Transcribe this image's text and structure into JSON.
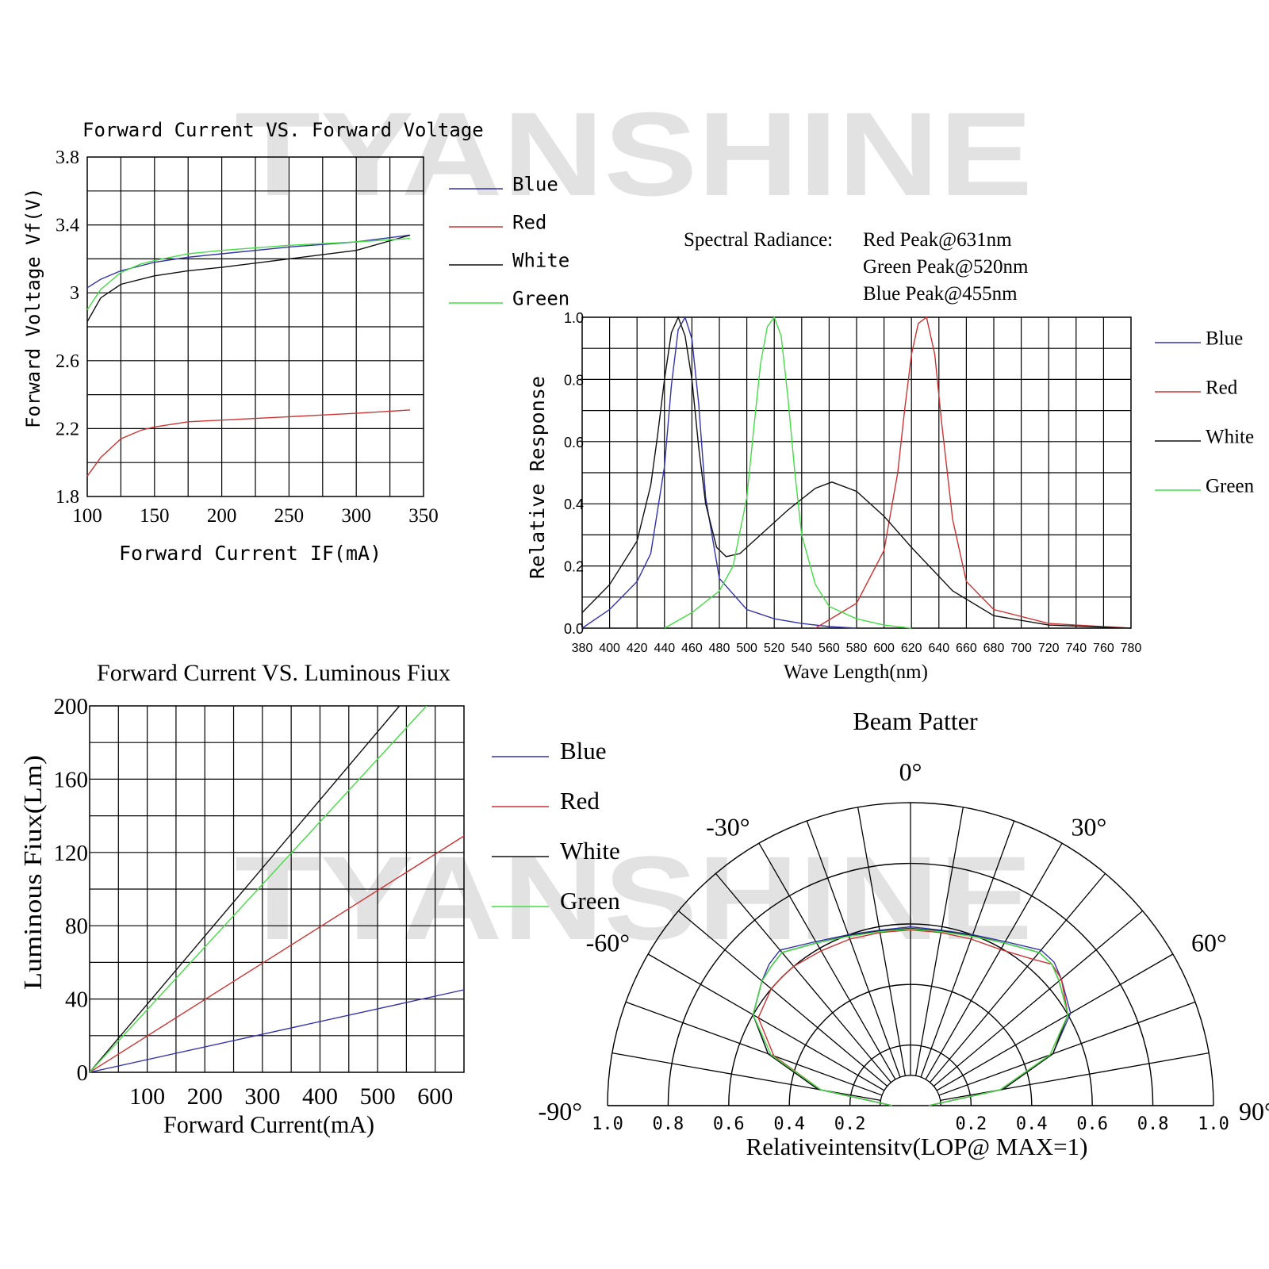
{
  "watermark": "TYANSHINE",
  "colors": {
    "Blue": "#3333aa",
    "Red": "#cc3333",
    "White": "#111111",
    "Green": "#44dd44"
  },
  "legend_labels": [
    "Blue",
    "Red",
    "White",
    "Green"
  ],
  "chart_data": [
    {
      "id": "vf",
      "type": "line",
      "title": "Forward Current VS. Forward Voltage",
      "xlabel": "Forward Current IF(mA)",
      "ylabel": "Forward Voltage Vf(V)",
      "xlim": [
        100,
        350
      ],
      "ylim": [
        1.8,
        3.8
      ],
      "xticks": [
        100,
        150,
        200,
        250,
        300,
        350
      ],
      "yticks": [
        1.8,
        2.2,
        2.6,
        3.0,
        3.4,
        3.8
      ],
      "legend": "right",
      "series": [
        {
          "name": "Blue",
          "x": [
            100,
            110,
            125,
            140,
            150,
            175,
            200,
            250,
            300,
            340
          ],
          "y": [
            3.03,
            3.08,
            3.13,
            3.16,
            3.18,
            3.21,
            3.23,
            3.27,
            3.3,
            3.34
          ]
        },
        {
          "name": "Red",
          "x": [
            100,
            110,
            125,
            140,
            150,
            175,
            200,
            250,
            300,
            340
          ],
          "y": [
            1.92,
            2.03,
            2.14,
            2.19,
            2.21,
            2.24,
            2.25,
            2.27,
            2.29,
            2.31
          ]
        },
        {
          "name": "White",
          "x": [
            100,
            110,
            125,
            140,
            150,
            175,
            200,
            250,
            300,
            340
          ],
          "y": [
            2.83,
            2.97,
            3.05,
            3.08,
            3.1,
            3.13,
            3.15,
            3.2,
            3.25,
            3.34
          ]
        },
        {
          "name": "Green",
          "x": [
            100,
            110,
            125,
            140,
            150,
            175,
            200,
            250,
            300,
            340
          ],
          "y": [
            2.9,
            3.02,
            3.12,
            3.17,
            3.19,
            3.23,
            3.25,
            3.28,
            3.3,
            3.32
          ]
        }
      ]
    },
    {
      "id": "spectral",
      "type": "line",
      "title": "Spectral Radiance:",
      "peaks": [
        "Red Peak@631nm",
        "Green Peak@520nm",
        "Blue Peak@455nm"
      ],
      "xlabel": "Wave Length(nm)",
      "ylabel": "Relative Response",
      "xlim": [
        380,
        780
      ],
      "ylim": [
        0,
        1.0
      ],
      "xticks": [
        380,
        400,
        420,
        440,
        460,
        480,
        500,
        520,
        540,
        560,
        580,
        600,
        620,
        640,
        660,
        680,
        700,
        720,
        740,
        760,
        780
      ],
      "yticks": [
        "0.0",
        "0.2",
        "0.4",
        "0.6",
        "0.8",
        "1.0"
      ],
      "legend": "right",
      "series": [
        {
          "name": "Blue",
          "x": [
            380,
            400,
            420,
            430,
            440,
            445,
            450,
            455,
            460,
            465,
            470,
            480,
            500,
            520,
            540,
            560,
            580
          ],
          "y": [
            0.0,
            0.06,
            0.15,
            0.24,
            0.52,
            0.78,
            0.96,
            1.0,
            0.93,
            0.72,
            0.42,
            0.16,
            0.06,
            0.03,
            0.015,
            0.005,
            0.0
          ]
        },
        {
          "name": "Red",
          "x": [
            550,
            580,
            600,
            610,
            615,
            620,
            625,
            631,
            637,
            642,
            650,
            660,
            680,
            720,
            780
          ],
          "y": [
            0.0,
            0.08,
            0.25,
            0.5,
            0.7,
            0.88,
            0.98,
            1.0,
            0.88,
            0.66,
            0.35,
            0.15,
            0.06,
            0.015,
            0.0
          ]
        },
        {
          "name": "White",
          "x": [
            380,
            400,
            420,
            430,
            435,
            440,
            445,
            450,
            455,
            460,
            465,
            470,
            478,
            485,
            495,
            510,
            530,
            550,
            562,
            580,
            600,
            620,
            650,
            680,
            720,
            780
          ],
          "y": [
            0.05,
            0.14,
            0.28,
            0.46,
            0.62,
            0.8,
            0.95,
            1.0,
            0.94,
            0.8,
            0.58,
            0.4,
            0.26,
            0.23,
            0.24,
            0.3,
            0.38,
            0.45,
            0.47,
            0.44,
            0.36,
            0.26,
            0.12,
            0.04,
            0.01,
            0.0
          ]
        },
        {
          "name": "Green",
          "x": [
            440,
            460,
            480,
            490,
            500,
            505,
            510,
            515,
            520,
            525,
            530,
            535,
            540,
            550,
            560,
            580,
            600,
            620
          ],
          "y": [
            0.0,
            0.05,
            0.12,
            0.2,
            0.42,
            0.64,
            0.85,
            0.97,
            1.0,
            0.94,
            0.74,
            0.5,
            0.3,
            0.14,
            0.07,
            0.03,
            0.01,
            0.0
          ]
        }
      ]
    },
    {
      "id": "flux",
      "type": "line",
      "title": "Forward Current VS. Luminous Fiux",
      "xlabel": "Forward Current(mA)",
      "ylabel": "Luminous Fiux(Lm)",
      "xlim": [
        0,
        650
      ],
      "ylim": [
        0,
        200
      ],
      "xticks": [
        100,
        200,
        300,
        400,
        500,
        600
      ],
      "yticks": [
        0,
        40,
        80,
        120,
        160,
        200
      ],
      "legend": "right",
      "series": [
        {
          "name": "Blue",
          "x": [
            0,
            650
          ],
          "y": [
            0,
            45
          ]
        },
        {
          "name": "Red",
          "x": [
            0,
            650
          ],
          "y": [
            0,
            129
          ]
        },
        {
          "name": "White",
          "x": [
            0,
            538
          ],
          "y": [
            0,
            200
          ]
        },
        {
          "name": "Green",
          "x": [
            0,
            585
          ],
          "y": [
            0,
            200
          ]
        }
      ]
    },
    {
      "id": "beam",
      "type": "polar",
      "title": "Beam Patter",
      "xlabel": "Relativeintensitv(LOP@ MAX=1)",
      "angle_labels": [
        "-90°",
        "-60°",
        "-30°",
        "0°",
        "30°",
        "60°",
        "90°"
      ],
      "radial_ticks": [
        "1.0",
        "0.8",
        "0.6",
        "0.4",
        "0.2",
        "0.2",
        "0.4",
        "0.6",
        "0.8",
        "1.0"
      ],
      "series": [
        {
          "name": "Blue",
          "angles": [
            -90,
            -80,
            -70,
            -60,
            -50,
            -45,
            -40,
            -30,
            -20,
            -10,
            0,
            10,
            20,
            30,
            40,
            45,
            50,
            60,
            70,
            80,
            90
          ],
          "r": [
            0.06,
            0.31,
            0.5,
            0.6,
            0.64,
            0.66,
            0.67,
            0.625,
            0.6,
            0.588,
            0.59,
            0.588,
            0.6,
            0.625,
            0.67,
            0.67,
            0.65,
            0.61,
            0.5,
            0.31,
            0.06
          ]
        },
        {
          "name": "Red",
          "angles": [
            -90,
            -80,
            -70,
            -60,
            -50,
            -45,
            -40,
            -30,
            -20,
            -10,
            0,
            10,
            20,
            30,
            40,
            45,
            50,
            60,
            70,
            80,
            90
          ],
          "r": [
            0.06,
            0.3,
            0.48,
            0.58,
            0.6,
            0.6,
            0.6,
            0.59,
            0.585,
            0.58,
            0.58,
            0.58,
            0.585,
            0.595,
            0.63,
            0.66,
            0.65,
            0.6,
            0.49,
            0.3,
            0.06
          ]
        },
        {
          "name": "White",
          "angles": [
            -90,
            -80,
            -70,
            -60,
            -50,
            -45,
            -40,
            -30,
            -20,
            -10,
            0,
            10,
            20,
            30,
            40,
            45,
            50,
            60,
            70,
            80,
            90
          ],
          "r": [
            0.06,
            0.31,
            0.5,
            0.6,
            0.64,
            0.65,
            0.66,
            0.62,
            0.597,
            0.585,
            0.585,
            0.585,
            0.597,
            0.62,
            0.66,
            0.66,
            0.64,
            0.6,
            0.5,
            0.31,
            0.06
          ]
        },
        {
          "name": "Green",
          "angles": [
            -90,
            -80,
            -70,
            -60,
            -50,
            -45,
            -40,
            -30,
            -20,
            -10,
            0,
            10,
            20,
            30,
            40,
            45,
            50,
            60,
            70,
            80,
            90
          ],
          "r": [
            0.06,
            0.3,
            0.49,
            0.6,
            0.64,
            0.65,
            0.66,
            0.62,
            0.595,
            0.583,
            0.583,
            0.583,
            0.595,
            0.62,
            0.66,
            0.66,
            0.64,
            0.6,
            0.49,
            0.3,
            0.06
          ]
        }
      ]
    }
  ]
}
